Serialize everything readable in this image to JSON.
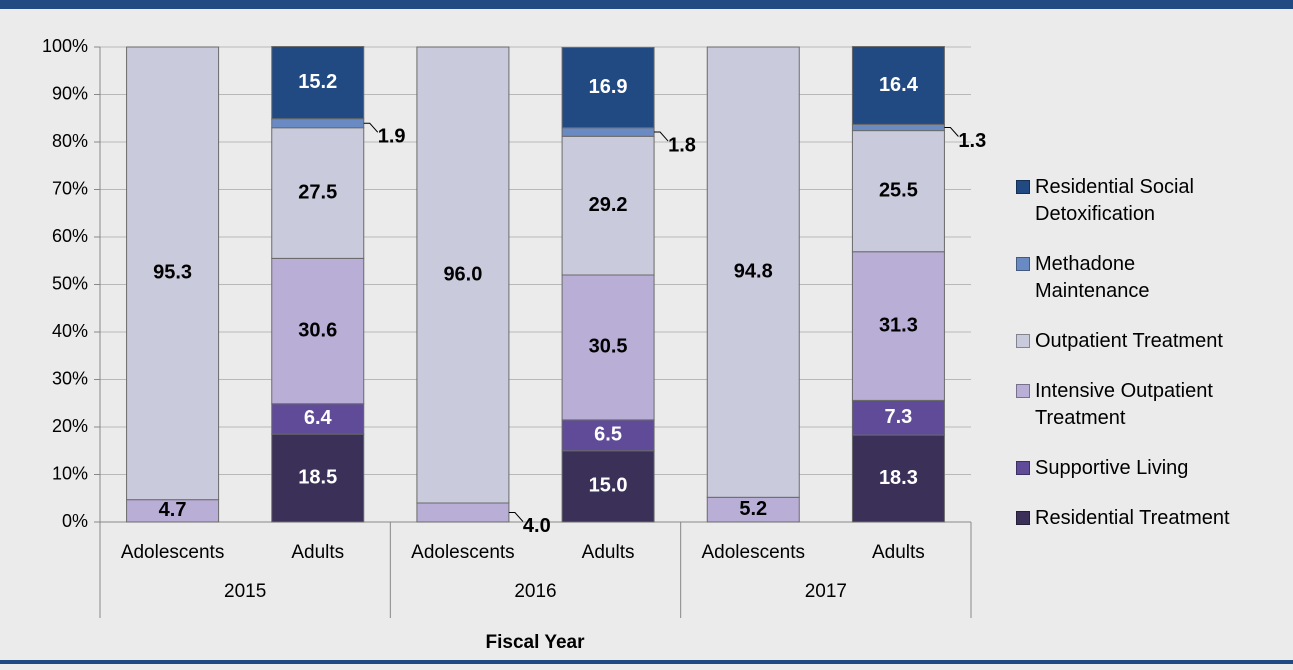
{
  "chart_data": {
    "type": "stacked_bar",
    "categories": [
      "Adolescents",
      "Adults",
      "Adolescents",
      "Adults",
      "Adolescents",
      "Adults"
    ],
    "groups": [
      "2015",
      "2016",
      "2017"
    ],
    "x_label": "Fiscal Year",
    "ylim": [
      0,
      100
    ],
    "yticks": [
      {
        "value": 0,
        "label": "0%"
      },
      {
        "value": 10,
        "label": "10%"
      },
      {
        "value": 20,
        "label": "20%"
      },
      {
        "value": 30,
        "label": "30%"
      },
      {
        "value": 40,
        "label": "40%"
      },
      {
        "value": 50,
        "label": "50%"
      },
      {
        "value": 60,
        "label": "60%"
      },
      {
        "value": 70,
        "label": "70%"
      },
      {
        "value": 80,
        "label": "80%"
      },
      {
        "value": 90,
        "label": "90%"
      },
      {
        "value": 100,
        "label": "100%"
      }
    ],
    "grid": true,
    "legend": "right",
    "series": [
      {
        "name": "Residential Treatment",
        "color": "#3a3058",
        "values": [
          null,
          18.5,
          null,
          15.0,
          null,
          18.3
        ],
        "value_labels": [
          null,
          "18.5",
          null,
          "15.0",
          null,
          "18.3"
        ]
      },
      {
        "name": "Supportive Living",
        "color": "#5f4b98",
        "values": [
          null,
          6.4,
          null,
          6.5,
          null,
          7.3
        ],
        "value_labels": [
          null,
          "6.4",
          null,
          "6.5",
          null,
          "7.3"
        ]
      },
      {
        "name": "Intensive Outpatient Treatment",
        "color": "#b9aed6",
        "values": [
          4.7,
          30.6,
          4.0,
          30.5,
          5.2,
          31.3
        ],
        "value_labels": [
          "4.7",
          "30.6",
          "4.0",
          "30.5",
          "5.2",
          "31.3"
        ]
      },
      {
        "name": "Outpatient Treatment",
        "color": "#c9cbdd",
        "values": [
          95.3,
          27.5,
          96.0,
          29.2,
          94.8,
          25.5
        ],
        "value_labels": [
          "95.3",
          "27.5",
          "96.0",
          "29.2",
          "94.8",
          "25.5"
        ]
      },
      {
        "name": "Methadone Maintenance",
        "color": "#6a8ac4",
        "values": [
          null,
          1.9,
          null,
          1.8,
          null,
          1.3
        ],
        "value_labels": [
          null,
          "1.9",
          null,
          "1.8",
          null,
          "1.3"
        ]
      },
      {
        "name": "Residential Social Detoxification",
        "color": "#214a82",
        "values": [
          null,
          15.2,
          null,
          16.9,
          null,
          16.4
        ],
        "value_labels": [
          null,
          "15.2",
          null,
          "16.9",
          null,
          "16.4"
        ]
      }
    ]
  }
}
